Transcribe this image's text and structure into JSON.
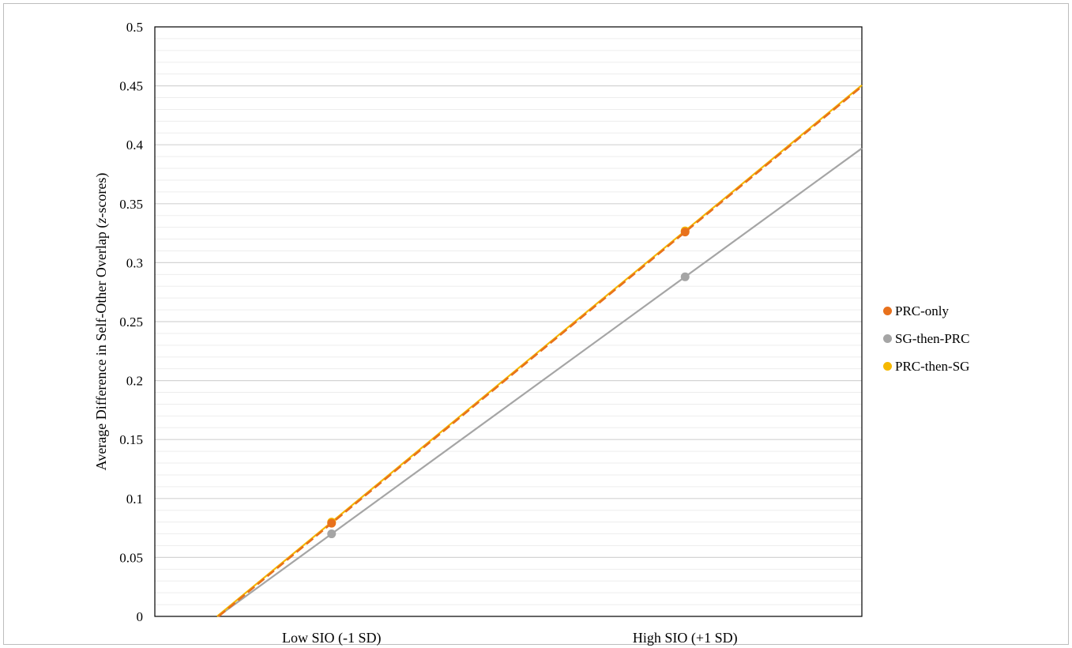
{
  "chart_data": {
    "type": "line",
    "title": "",
    "xlabel": "",
    "ylabel": "Average Difference in Self-Other Overlap (z-scores)",
    "ylabel_parts": [
      "Average Difference in Self-Other Overlap (",
      "z",
      "-scores)"
    ],
    "categories": [
      "Low SIO (-1 SD)",
      "High SIO (+1 SD)"
    ],
    "ylim": [
      0,
      0.5
    ],
    "yticks": [
      0,
      0.05,
      0.1,
      0.15,
      0.2,
      0.25,
      0.3,
      0.35,
      0.4,
      0.45,
      0.5
    ],
    "ytick_labels": [
      "0",
      "0.05",
      "0.1",
      "0.15",
      "0.2",
      "0.25",
      "0.3",
      "0.35",
      "0.4",
      "0.45",
      "0.5"
    ],
    "minor_gridlines": true,
    "legend_position": "right",
    "series": [
      {
        "name": "PRC-only",
        "values": [
          0.079,
          0.326
        ],
        "color": "#E8711C",
        "dash": "dashed"
      },
      {
        "name": "SG-then-PRC",
        "values": [
          0.07,
          0.288
        ],
        "color": "#A5A5A5",
        "dash": "solid"
      },
      {
        "name": "PRC-then-SG",
        "values": [
          0.08,
          0.327
        ],
        "color": "#F5B800",
        "dash": "solid"
      }
    ]
  }
}
